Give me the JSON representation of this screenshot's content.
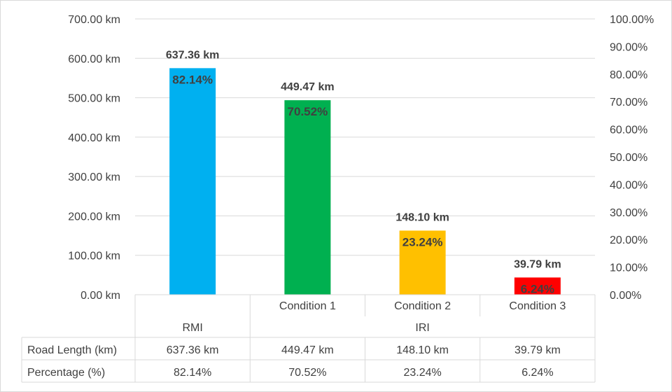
{
  "chart_data": {
    "type": "bar",
    "categories": [
      "RMI",
      "Condition 1",
      "Condition 2",
      "Condition 3"
    ],
    "category_groups": [
      "RMI",
      "IRI"
    ],
    "primary_axis": {
      "min": 0,
      "max": 700,
      "step": 100,
      "tick_labels": [
        "0.00 km",
        "100.00 km",
        "200.00 km",
        "300.00 km",
        "400.00 km",
        "500.00 km",
        "600.00 km",
        "700.00 km"
      ]
    },
    "secondary_axis": {
      "min": 0,
      "max": 100,
      "step": 10,
      "tick_labels": [
        "0.00%",
        "10.00%",
        "20.00%",
        "30.00%",
        "40.00%",
        "50.00%",
        "60.00%",
        "70.00%",
        "80.00%",
        "90.00%",
        "100.00%"
      ]
    },
    "series": [
      {
        "name": "Road Length (km)",
        "values": [
          637.36,
          449.47,
          148.1,
          39.79
        ],
        "labels": [
          "637.36 km",
          "449.47 km",
          "148.10 km",
          "39.79 km"
        ],
        "table_values": [
          "637.36 km",
          "449.47 km",
          "148.10 km",
          "39.79 km"
        ]
      },
      {
        "name": "Percentage (%)",
        "values": [
          82.14,
          70.52,
          23.24,
          6.24
        ],
        "labels": [
          "82.14%",
          "70.52%",
          "23.24%",
          "6.24%"
        ],
        "table_values": [
          "82.14%",
          "70.52%",
          "23.24%",
          "6.24%"
        ]
      }
    ],
    "colors": [
      "#00b0f0",
      "#00b050",
      "#ffc000",
      "#ff0000"
    ],
    "grid": true,
    "data_table": true
  }
}
